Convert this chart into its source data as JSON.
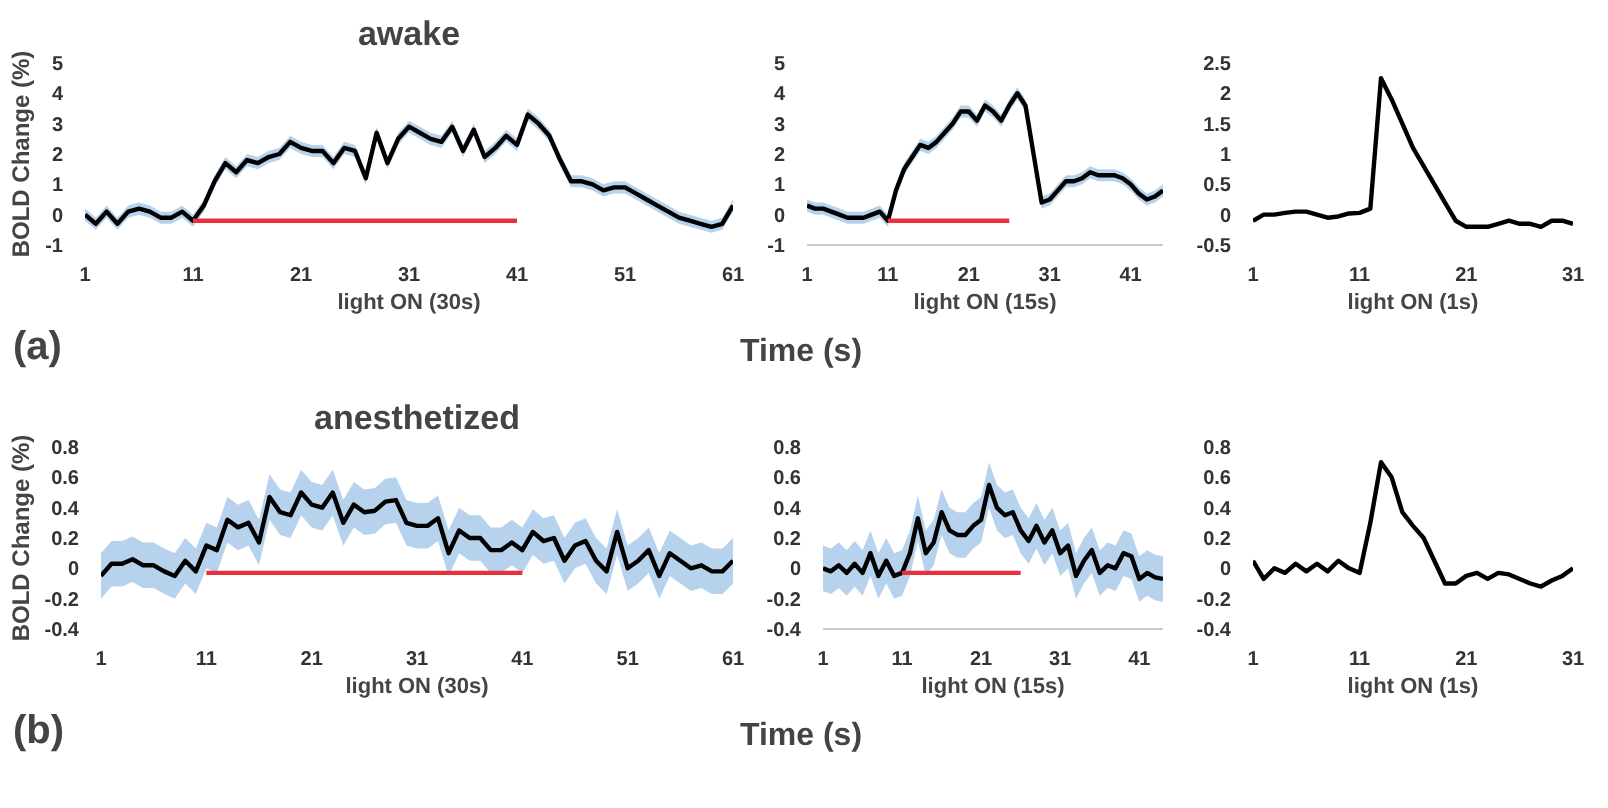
{
  "chart_data": [
    {
      "type": "line",
      "title": "awake",
      "ylabel": "BOLD Change (%)",
      "xlabel": "light ON (30s)",
      "annotations": [
        "(a)",
        "Time (s)"
      ],
      "xlim": [
        1,
        61
      ],
      "xticks": [
        1,
        11,
        21,
        31,
        41,
        51,
        61
      ],
      "ylim": [
        -1,
        5
      ],
      "yticks": [
        -1,
        0,
        1,
        2,
        3,
        4,
        5
      ],
      "x": [
        1,
        2,
        3,
        4,
        5,
        6,
        7,
        8,
        9,
        10,
        11,
        12,
        13,
        14,
        15,
        16,
        17,
        18,
        19,
        20,
        21,
        22,
        23,
        24,
        25,
        26,
        27,
        28,
        29,
        30,
        31,
        32,
        33,
        34,
        35,
        36,
        37,
        38,
        39,
        40,
        41,
        42,
        43,
        44,
        45,
        46,
        47,
        48,
        49,
        50,
        51,
        52,
        53,
        54,
        55,
        56,
        57,
        58,
        59,
        60,
        61
      ],
      "series": [
        {
          "color": "#000000",
          "values": [
            0,
            -0.3,
            0.1,
            -0.3,
            0.1,
            0.2,
            0.1,
            -0.1,
            -0.1,
            0.1,
            -0.2,
            0.3,
            1.1,
            1.7,
            1.4,
            1.8,
            1.7,
            1.9,
            2.0,
            2.4,
            2.2,
            2.1,
            2.1,
            1.7,
            2.2,
            2.1,
            1.2,
            2.7,
            1.7,
            2.5,
            2.9,
            2.7,
            2.5,
            2.4,
            2.9,
            2.1,
            2.8,
            1.9,
            2.2,
            2.6,
            2.3,
            3.3,
            3.0,
            2.6,
            1.8,
            1.1,
            1.1,
            1.0,
            0.8,
            0.9,
            0.9,
            0.7,
            0.5,
            0.3,
            0.1,
            -0.1,
            -0.2,
            -0.3,
            -0.4,
            -0.3,
            0.3
          ],
          "lower": [
            -0.2,
            -0.5,
            -0.1,
            -0.5,
            -0.1,
            0,
            -0.1,
            -0.3,
            -0.3,
            -0.1,
            -0.4,
            0.1,
            0.9,
            1.5,
            1.2,
            1.6,
            1.5,
            1.7,
            1.8,
            2.2,
            2.0,
            1.9,
            1.9,
            1.5,
            2.0,
            1.9,
            1.0,
            2.5,
            1.5,
            2.3,
            2.7,
            2.5,
            2.3,
            2.2,
            2.7,
            1.9,
            2.6,
            1.7,
            2.0,
            2.4,
            2.1,
            3.1,
            2.8,
            2.4,
            1.6,
            0.9,
            0.9,
            0.8,
            0.6,
            0.7,
            0.7,
            0.5,
            0.3,
            0.1,
            -0.1,
            -0.3,
            -0.4,
            -0.5,
            -0.6,
            -0.5,
            0.1
          ],
          "upper": [
            0.2,
            -0.1,
            0.3,
            -0.1,
            0.3,
            0.4,
            0.3,
            0.1,
            0.1,
            0.3,
            0,
            0.5,
            1.3,
            1.9,
            1.6,
            2.0,
            1.9,
            2.1,
            2.2,
            2.6,
            2.4,
            2.3,
            2.3,
            1.9,
            2.4,
            2.3,
            1.4,
            2.9,
            1.9,
            2.7,
            3.1,
            2.9,
            2.7,
            2.6,
            3.1,
            2.3,
            3.0,
            2.1,
            2.4,
            2.8,
            2.5,
            3.5,
            3.2,
            2.8,
            2.0,
            1.3,
            1.3,
            1.2,
            1.0,
            1.1,
            1.1,
            0.9,
            0.7,
            0.5,
            0.3,
            0.1,
            0,
            -0.1,
            -0.2,
            -0.1,
            0.5
          ]
        },
        {
          "color": "#e8303a",
          "x": [
            11,
            41
          ],
          "values": [
            -0.2,
            -0.2
          ]
        }
      ]
    },
    {
      "type": "line",
      "xlabel": "light ON (15s)",
      "xlim": [
        1,
        45
      ],
      "xticks": [
        1,
        11,
        21,
        31,
        41
      ],
      "ylim": [
        -1,
        5
      ],
      "yticks": [
        -1,
        0,
        1,
        2,
        3,
        4,
        5
      ],
      "x": [
        1,
        2,
        3,
        4,
        5,
        6,
        7,
        8,
        9,
        10,
        11,
        12,
        13,
        14,
        15,
        16,
        17,
        18,
        19,
        20,
        21,
        22,
        23,
        24,
        25,
        26,
        27,
        28,
        29,
        30,
        31,
        32,
        33,
        34,
        35,
        36,
        37,
        38,
        39,
        40,
        41,
        42,
        43,
        44,
        45
      ],
      "series": [
        {
          "color": "#000000",
          "values": [
            0.3,
            0.2,
            0.2,
            0.1,
            0,
            -0.1,
            -0.1,
            -0.1,
            0,
            0.1,
            -0.2,
            0.8,
            1.5,
            1.9,
            2.3,
            2.2,
            2.4,
            2.7,
            3.0,
            3.4,
            3.4,
            3.1,
            3.6,
            3.4,
            3.1,
            3.6,
            4.0,
            3.6,
            2.0,
            0.4,
            0.5,
            0.8,
            1.1,
            1.1,
            1.2,
            1.4,
            1.3,
            1.3,
            1.3,
            1.2,
            1.0,
            0.7,
            0.5,
            0.6,
            0.8
          ],
          "lower": [
            0.1,
            0,
            0,
            -0.1,
            -0.2,
            -0.3,
            -0.3,
            -0.3,
            -0.2,
            -0.1,
            -0.4,
            0.6,
            1.3,
            1.7,
            2.1,
            2.0,
            2.2,
            2.5,
            2.8,
            3.2,
            3.2,
            2.9,
            3.4,
            3.2,
            2.9,
            3.4,
            3.8,
            3.4,
            1.8,
            0.2,
            0.3,
            0.6,
            0.9,
            0.9,
            1.0,
            1.2,
            1.1,
            1.1,
            1.1,
            1.0,
            0.8,
            0.5,
            0.3,
            0.4,
            0.6
          ],
          "upper": [
            0.5,
            0.4,
            0.4,
            0.3,
            0.2,
            0.1,
            0.1,
            0.1,
            0.2,
            0.3,
            0,
            1.0,
            1.7,
            2.1,
            2.5,
            2.4,
            2.6,
            2.9,
            3.2,
            3.6,
            3.6,
            3.3,
            3.8,
            3.6,
            3.3,
            3.8,
            4.2,
            3.8,
            2.2,
            0.6,
            0.7,
            1.0,
            1.3,
            1.3,
            1.4,
            1.6,
            1.5,
            1.5,
            1.5,
            1.4,
            1.2,
            0.9,
            0.7,
            0.8,
            1.0
          ]
        },
        {
          "color": "#e8303a",
          "x": [
            11,
            26
          ],
          "values": [
            -0.2,
            -0.2
          ]
        }
      ]
    },
    {
      "type": "line",
      "xlabel": "light ON (1s)",
      "xlim": [
        1,
        31
      ],
      "xticks": [
        1,
        11,
        21,
        31
      ],
      "ylim": [
        -0.5,
        2.5
      ],
      "yticks": [
        -0.5,
        0,
        0.5,
        1,
        1.5,
        2,
        2.5
      ],
      "x": [
        1,
        2,
        3,
        4,
        5,
        6,
        7,
        8,
        9,
        10,
        11,
        12,
        13,
        14,
        15,
        16,
        17,
        18,
        19,
        20,
        21,
        22,
        23,
        24,
        25,
        26,
        27,
        28,
        29,
        30,
        31
      ],
      "series": [
        {
          "color": "#000000",
          "values": [
            -0.1,
            0,
            0,
            0.03,
            0.05,
            0.05,
            0,
            -0.05,
            -0.03,
            0.02,
            0.03,
            0.1,
            2.25,
            1.9,
            1.5,
            1.1,
            0.8,
            0.5,
            0.2,
            -0.1,
            -0.2,
            -0.2,
            -0.2,
            -0.15,
            -0.1,
            -0.15,
            -0.15,
            -0.2,
            -0.1,
            -0.1,
            -0.15
          ]
        }
      ]
    },
    {
      "type": "line",
      "title": "anesthetized",
      "ylabel": "BOLD Change (%)",
      "xlabel": "light ON (30s)",
      "annotations": [
        "(b)",
        "Time (s)"
      ],
      "xlim": [
        1,
        61
      ],
      "xticks": [
        1,
        11,
        21,
        31,
        41,
        51,
        61
      ],
      "ylim": [
        -0.4,
        0.8
      ],
      "yticks": [
        -0.4,
        -0.2,
        0,
        0.2,
        0.4,
        0.6,
        0.8
      ],
      "x": [
        1,
        2,
        3,
        4,
        5,
        6,
        7,
        8,
        9,
        10,
        11,
        12,
        13,
        14,
        15,
        16,
        17,
        18,
        19,
        20,
        21,
        22,
        23,
        24,
        25,
        26,
        27,
        28,
        29,
        30,
        31,
        32,
        33,
        34,
        35,
        36,
        37,
        38,
        39,
        40,
        41,
        42,
        43,
        44,
        45,
        46,
        47,
        48,
        49,
        50,
        51,
        52,
        53,
        54,
        55,
        56,
        57,
        58,
        59,
        60,
        61
      ],
      "series": [
        {
          "color": "#000000",
          "values": [
            -0.05,
            0.03,
            0.03,
            0.06,
            0.02,
            0.02,
            -0.02,
            -0.05,
            0.05,
            -0.02,
            0.15,
            0.12,
            0.32,
            0.27,
            0.3,
            0.17,
            0.47,
            0.37,
            0.35,
            0.5,
            0.42,
            0.4,
            0.5,
            0.3,
            0.42,
            0.37,
            0.38,
            0.44,
            0.45,
            0.3,
            0.28,
            0.28,
            0.33,
            0.1,
            0.25,
            0.2,
            0.2,
            0.12,
            0.12,
            0.17,
            0.12,
            0.24,
            0.18,
            0.2,
            0.05,
            0.15,
            0.18,
            0.05,
            -0.02,
            0.24,
            0,
            0.05,
            0.12,
            -0.05,
            0.1,
            0.05,
            0,
            0.02,
            -0.02,
            -0.02,
            0.05
          ],
          "lower": [
            -0.2,
            -0.12,
            -0.12,
            -0.09,
            -0.13,
            -0.13,
            -0.17,
            -0.2,
            -0.1,
            -0.17,
            0,
            -0.03,
            0.17,
            0.12,
            0.15,
            0.02,
            0.32,
            0.22,
            0.2,
            0.35,
            0.27,
            0.25,
            0.35,
            0.15,
            0.27,
            0.22,
            0.23,
            0.29,
            0.3,
            0.15,
            0.13,
            0.13,
            0.18,
            -0.05,
            0.1,
            0.05,
            0.05,
            -0.03,
            -0.03,
            0.02,
            -0.03,
            0.09,
            0.03,
            0.05,
            -0.1,
            0,
            0.03,
            -0.1,
            -0.17,
            0.09,
            -0.15,
            -0.1,
            -0.03,
            -0.2,
            -0.05,
            -0.1,
            -0.15,
            -0.13,
            -0.17,
            -0.17,
            -0.1
          ],
          "upper": [
            0.1,
            0.18,
            0.18,
            0.21,
            0.17,
            0.17,
            0.13,
            0.1,
            0.2,
            0.13,
            0.3,
            0.27,
            0.47,
            0.42,
            0.45,
            0.32,
            0.62,
            0.52,
            0.5,
            0.65,
            0.57,
            0.55,
            0.65,
            0.45,
            0.57,
            0.52,
            0.53,
            0.59,
            0.6,
            0.45,
            0.43,
            0.43,
            0.48,
            0.25,
            0.4,
            0.35,
            0.35,
            0.27,
            0.27,
            0.32,
            0.27,
            0.39,
            0.33,
            0.35,
            0.2,
            0.3,
            0.33,
            0.2,
            0.13,
            0.39,
            0.15,
            0.2,
            0.27,
            0.1,
            0.25,
            0.2,
            0.15,
            0.17,
            0.13,
            0.13,
            0.2
          ]
        },
        {
          "color": "#e8303a",
          "x": [
            11,
            41
          ],
          "values": [
            -0.03,
            -0.03
          ]
        }
      ]
    },
    {
      "type": "line",
      "xlabel": "light ON (15s)",
      "xlim": [
        1,
        44
      ],
      "xticks": [
        1,
        11,
        21,
        31,
        41
      ],
      "ylim": [
        -0.4,
        0.8
      ],
      "yticks": [
        -0.4,
        -0.2,
        0,
        0.2,
        0.4,
        0.6,
        0.8
      ],
      "x": [
        1,
        2,
        3,
        4,
        5,
        6,
        7,
        8,
        9,
        10,
        11,
        12,
        13,
        14,
        15,
        16,
        17,
        18,
        19,
        20,
        21,
        22,
        23,
        24,
        25,
        26,
        27,
        28,
        29,
        30,
        31,
        32,
        33,
        34,
        35,
        36,
        37,
        38,
        39,
        40,
        41,
        42,
        43,
        44
      ],
      "series": [
        {
          "color": "#000000",
          "values": [
            0,
            -0.02,
            0.02,
            -0.03,
            0.03,
            -0.03,
            0.1,
            -0.05,
            0.05,
            -0.05,
            -0.03,
            0.1,
            0.33,
            0.1,
            0.17,
            0.37,
            0.25,
            0.22,
            0.22,
            0.28,
            0.32,
            0.55,
            0.4,
            0.35,
            0.37,
            0.25,
            0.18,
            0.28,
            0.17,
            0.25,
            0.1,
            0.15,
            -0.05,
            0.05,
            0.12,
            -0.03,
            0.02,
            0,
            0.1,
            0.08,
            -0.07,
            -0.03,
            -0.06,
            -0.07
          ],
          "lower": [
            -0.15,
            -0.17,
            -0.13,
            -0.18,
            -0.12,
            -0.18,
            -0.05,
            -0.2,
            -0.1,
            -0.2,
            -0.18,
            -0.05,
            0.18,
            -0.05,
            0.02,
            0.22,
            0.1,
            0.07,
            0.07,
            0.13,
            0.17,
            0.4,
            0.25,
            0.2,
            0.22,
            0.1,
            0.03,
            0.13,
            0.02,
            0.1,
            -0.05,
            0,
            -0.2,
            -0.1,
            -0.03,
            -0.18,
            -0.13,
            -0.15,
            -0.05,
            -0.07,
            -0.22,
            -0.18,
            -0.21,
            -0.22
          ],
          "upper": [
            0.15,
            0.13,
            0.17,
            0.12,
            0.18,
            0.12,
            0.25,
            0.1,
            0.2,
            0.1,
            0.12,
            0.25,
            0.48,
            0.25,
            0.32,
            0.52,
            0.4,
            0.37,
            0.37,
            0.43,
            0.47,
            0.7,
            0.55,
            0.5,
            0.52,
            0.4,
            0.33,
            0.43,
            0.32,
            0.4,
            0.25,
            0.3,
            0.1,
            0.2,
            0.27,
            0.12,
            0.17,
            0.15,
            0.25,
            0.23,
            0.08,
            0.12,
            0.09,
            0.08
          ]
        },
        {
          "color": "#e8303a",
          "x": [
            11,
            26
          ],
          "values": [
            -0.03,
            -0.03
          ]
        }
      ]
    },
    {
      "type": "line",
      "xlabel": "light ON (1s)",
      "xlim": [
        1,
        31
      ],
      "xticks": [
        1,
        11,
        21,
        31
      ],
      "ylim": [
        -0.4,
        0.8
      ],
      "yticks": [
        -0.4,
        -0.2,
        0,
        0.2,
        0.4,
        0.6,
        0.8
      ],
      "x": [
        1,
        2,
        3,
        4,
        5,
        6,
        7,
        8,
        9,
        10,
        11,
        12,
        13,
        14,
        15,
        16,
        17,
        18,
        19,
        20,
        21,
        22,
        23,
        24,
        25,
        26,
        27,
        28,
        29,
        30,
        31
      ],
      "series": [
        {
          "color": "#000000",
          "values": [
            0.05,
            -0.07,
            0,
            -0.03,
            0.03,
            -0.02,
            0.03,
            -0.02,
            0.05,
            0,
            -0.03,
            0.3,
            0.7,
            0.6,
            0.37,
            0.28,
            0.2,
            0.05,
            -0.1,
            -0.1,
            -0.05,
            -0.03,
            -0.07,
            -0.03,
            -0.04,
            -0.07,
            -0.1,
            -0.12,
            -0.08,
            -0.05,
            0
          ]
        }
      ]
    }
  ]
}
